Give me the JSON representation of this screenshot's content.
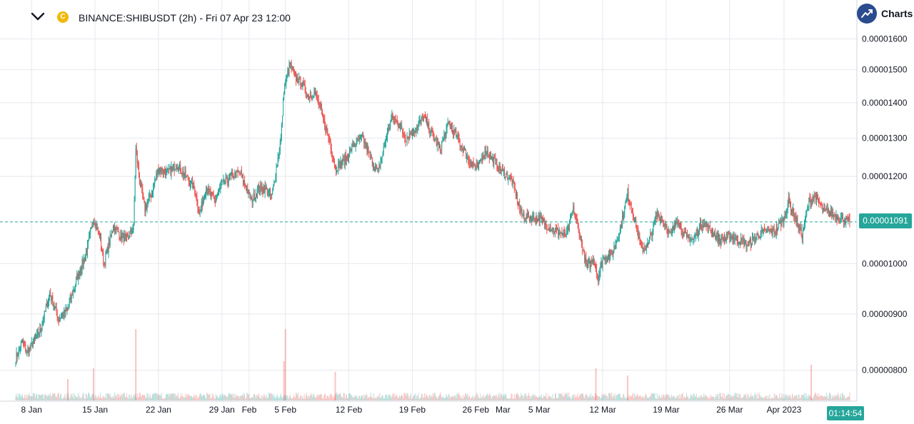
{
  "header": {
    "title": "BINANCE:SHIBUSDT (2h) - Fri 07 Apr 23 12:00",
    "coin_glyph": "C",
    "brand_label": "Charts",
    "icons": {
      "collapse": "chevron-down-icon",
      "coin": "shib-coin-icon",
      "brand": "trend-up-icon"
    }
  },
  "last_price_label": "0.00001091",
  "countdown_label": "01:14:54",
  "colors": {
    "up": "#26a69a",
    "down": "#ef5350",
    "grid": "#e6e8ee",
    "axis_text": "#131722",
    "price_line": "#26a69a",
    "brand": "#2a4b8d"
  },
  "chart_data": {
    "type": "candlestick",
    "symbol": "BINANCE:SHIBUSDT",
    "interval": "2h",
    "y_tick_labels": [
      "0.00001600",
      "0.00001500",
      "0.00001400",
      "0.00001300",
      "0.00001200",
      "0.00001000",
      "0.00000900",
      "0.00000800"
    ],
    "y_ticks": [
      1.6e-05,
      1.5e-05,
      1.4e-05,
      1.3e-05,
      1.2e-05,
      1e-05,
      9e-06,
      8e-06
    ],
    "y_scale": "log",
    "ylim": [
      7.75e-06,
      1.63e-05
    ],
    "x_tick_labels": [
      "8 Jan",
      "15 Jan",
      "22 Jan",
      "29 Jan",
      "Feb",
      "5 Feb",
      "12 Feb",
      "19 Feb",
      "26 Feb",
      "Mar",
      "5 Mar",
      "12 Mar",
      "19 Mar",
      "26 Mar",
      "Apr 2023"
    ],
    "x_ticks": [
      "2023-01-08",
      "2023-01-15",
      "2023-01-22",
      "2023-01-29",
      "2023-02-01",
      "2023-02-05",
      "2023-02-12",
      "2023-02-19",
      "2023-02-26",
      "2023-03-01",
      "2023-03-05",
      "2023-03-12",
      "2023-03-19",
      "2023-03-26",
      "2023-04-01"
    ],
    "xlim": [
      "2023-01-06T06:00",
      "2023-04-08T06:00"
    ],
    "last_price": 1.091e-05,
    "price_path": [
      [
        "2023-01-06T06:00",
        8.2e-06
      ],
      [
        "2023-01-07T00:00",
        8.5e-06
      ],
      [
        "2023-01-07T12:00",
        8.3e-06
      ],
      [
        "2023-01-09T00:00",
        8.7e-06
      ],
      [
        "2023-01-10T00:00",
        9.4e-06
      ],
      [
        "2023-01-11T00:00",
        8.9e-06
      ],
      [
        "2023-01-12T00:00",
        9.1e-06
      ],
      [
        "2023-01-13T00:00",
        9.7e-06
      ],
      [
        "2023-01-14T00:00",
        1.02e-05
      ],
      [
        "2023-01-14T20:00",
        1.1e-05
      ],
      [
        "2023-01-15T12:00",
        1.06e-05
      ],
      [
        "2023-01-16T00:00",
        1e-05
      ],
      [
        "2023-01-17T00:00",
        1.08e-05
      ],
      [
        "2023-01-18T12:00",
        1.05e-05
      ],
      [
        "2023-01-19T06:00",
        1.08e-05
      ],
      [
        "2023-01-19T12:00",
        1.27e-05
      ],
      [
        "2023-01-20T00:00",
        1.18e-05
      ],
      [
        "2023-01-20T12:00",
        1.12e-05
      ],
      [
        "2023-01-21T06:00",
        1.16e-05
      ],
      [
        "2023-01-22T00:00",
        1.22e-05
      ],
      [
        "2023-01-23T00:00",
        1.21e-05
      ],
      [
        "2023-01-24T00:00",
        1.23e-05
      ],
      [
        "2023-01-25T00:00",
        1.2e-05
      ],
      [
        "2023-01-26T00:00",
        1.17e-05
      ],
      [
        "2023-01-26T12:00",
        1.11e-05
      ],
      [
        "2023-01-27T06:00",
        1.17e-05
      ],
      [
        "2023-01-28T06:00",
        1.14e-05
      ],
      [
        "2023-01-29T00:00",
        1.18e-05
      ],
      [
        "2023-01-30T00:00",
        1.2e-05
      ],
      [
        "2023-01-31T00:00",
        1.21e-05
      ],
      [
        "2023-02-01T06:00",
        1.14e-05
      ],
      [
        "2023-02-02T00:00",
        1.17e-05
      ],
      [
        "2023-02-02T18:00",
        1.17e-05
      ],
      [
        "2023-02-03T12:00",
        1.15e-05
      ],
      [
        "2023-02-04T00:00",
        1.22e-05
      ],
      [
        "2023-02-04T12:00",
        1.3e-05
      ],
      [
        "2023-02-04T20:00",
        1.44e-05
      ],
      [
        "2023-02-05T12:00",
        1.52e-05
      ],
      [
        "2023-02-06T00:00",
        1.48e-05
      ],
      [
        "2023-02-06T18:00",
        1.46e-05
      ],
      [
        "2023-02-07T12:00",
        1.42e-05
      ],
      [
        "2023-02-08T06:00",
        1.43e-05
      ],
      [
        "2023-02-09T00:00",
        1.37e-05
      ],
      [
        "2023-02-10T00:00",
        1.28e-05
      ],
      [
        "2023-02-10T12:00",
        1.22e-05
      ],
      [
        "2023-02-11T12:00",
        1.24e-05
      ],
      [
        "2023-02-12T12:00",
        1.28e-05
      ],
      [
        "2023-02-13T12:00",
        1.3e-05
      ],
      [
        "2023-02-14T12:00",
        1.24e-05
      ],
      [
        "2023-02-15T06:00",
        1.21e-05
      ],
      [
        "2023-02-16T00:00",
        1.29e-05
      ],
      [
        "2023-02-16T18:00",
        1.36e-05
      ],
      [
        "2023-02-17T12:00",
        1.34e-05
      ],
      [
        "2023-02-18T06:00",
        1.3e-05
      ],
      [
        "2023-02-19T12:00",
        1.33e-05
      ],
      [
        "2023-02-20T06:00",
        1.36e-05
      ],
      [
        "2023-02-21T00:00",
        1.32e-05
      ],
      [
        "2023-02-22T00:00",
        1.27e-05
      ],
      [
        "2023-02-23T00:00",
        1.34e-05
      ],
      [
        "2023-02-24T00:00",
        1.3e-05
      ],
      [
        "2023-02-25T06:00",
        1.24e-05
      ],
      [
        "2023-02-26T06:00",
        1.22e-05
      ],
      [
        "2023-02-27T00:00",
        1.27e-05
      ],
      [
        "2023-02-28T00:00",
        1.24e-05
      ],
      [
        "2023-03-01T00:00",
        1.21e-05
      ],
      [
        "2023-03-02T00:00",
        1.19e-05
      ],
      [
        "2023-03-03T00:00",
        1.11e-05
      ],
      [
        "2023-03-04T00:00",
        1.1e-05
      ],
      [
        "2023-03-05T00:00",
        1.1e-05
      ],
      [
        "2023-03-06T00:00",
        1.08e-05
      ],
      [
        "2023-03-07T00:00",
        1.07e-05
      ],
      [
        "2023-03-08T00:00",
        1.06e-05
      ],
      [
        "2023-03-08T18:00",
        1.12e-05
      ],
      [
        "2023-03-09T12:00",
        1.06e-05
      ],
      [
        "2023-03-10T06:00",
        9.9e-06
      ],
      [
        "2023-03-11T00:00",
        1.01e-05
      ],
      [
        "2023-03-11T12:00",
        9.7e-06
      ],
      [
        "2023-03-12T00:00",
        1.01e-05
      ],
      [
        "2023-03-13T00:00",
        1.02e-05
      ],
      [
        "2023-03-14T00:00",
        1.08e-05
      ],
      [
        "2023-03-14T18:00",
        1.16e-05
      ],
      [
        "2023-03-15T12:00",
        1.1e-05
      ],
      [
        "2023-03-16T06:00",
        1.03e-05
      ],
      [
        "2023-03-17T00:00",
        1.04e-05
      ],
      [
        "2023-03-18T00:00",
        1.11e-05
      ],
      [
        "2023-03-18T18:00",
        1.09e-05
      ],
      [
        "2023-03-19T12:00",
        1.06e-05
      ],
      [
        "2023-03-20T06:00",
        1.1e-05
      ],
      [
        "2023-03-21T00:00",
        1.06e-05
      ],
      [
        "2023-03-22T00:00",
        1.05e-05
      ],
      [
        "2023-03-23T00:00",
        1.09e-05
      ],
      [
        "2023-03-24T00:00",
        1.07e-05
      ],
      [
        "2023-03-25T00:00",
        1.05e-05
      ],
      [
        "2023-03-26T00:00",
        1.06e-05
      ],
      [
        "2023-03-27T00:00",
        1.05e-05
      ],
      [
        "2023-03-28T00:00",
        1.04e-05
      ],
      [
        "2023-03-29T00:00",
        1.06e-05
      ],
      [
        "2023-03-30T00:00",
        1.07e-05
      ],
      [
        "2023-03-31T00:00",
        1.07e-05
      ],
      [
        "2023-04-01T00:00",
        1.1e-05
      ],
      [
        "2023-04-01T12:00",
        1.14e-05
      ],
      [
        "2023-04-02T06:00",
        1.1e-05
      ],
      [
        "2023-04-03T00:00",
        1.06e-05
      ],
      [
        "2023-04-03T18:00",
        1.14e-05
      ],
      [
        "2023-04-04T12:00",
        1.15e-05
      ],
      [
        "2023-04-05T06:00",
        1.12e-05
      ],
      [
        "2023-04-06T06:00",
        1.11e-05
      ],
      [
        "2023-04-07T06:00",
        1.1e-05
      ],
      [
        "2023-04-08T06:00",
        1.091e-05
      ]
    ],
    "volume_spikes": [
      [
        "2023-01-19T12:00",
        1.0
      ],
      [
        "2023-02-05T00:00",
        1.0
      ],
      [
        "2023-02-04T20:00",
        0.55
      ],
      [
        "2023-01-14T20:00",
        0.45
      ],
      [
        "2023-02-10T12:00",
        0.4
      ],
      [
        "2023-03-11T06:00",
        0.45
      ],
      [
        "2023-04-04T00:00",
        0.5
      ],
      [
        "2023-03-14T18:00",
        0.35
      ],
      [
        "2023-01-12T00:00",
        0.3
      ]
    ]
  }
}
